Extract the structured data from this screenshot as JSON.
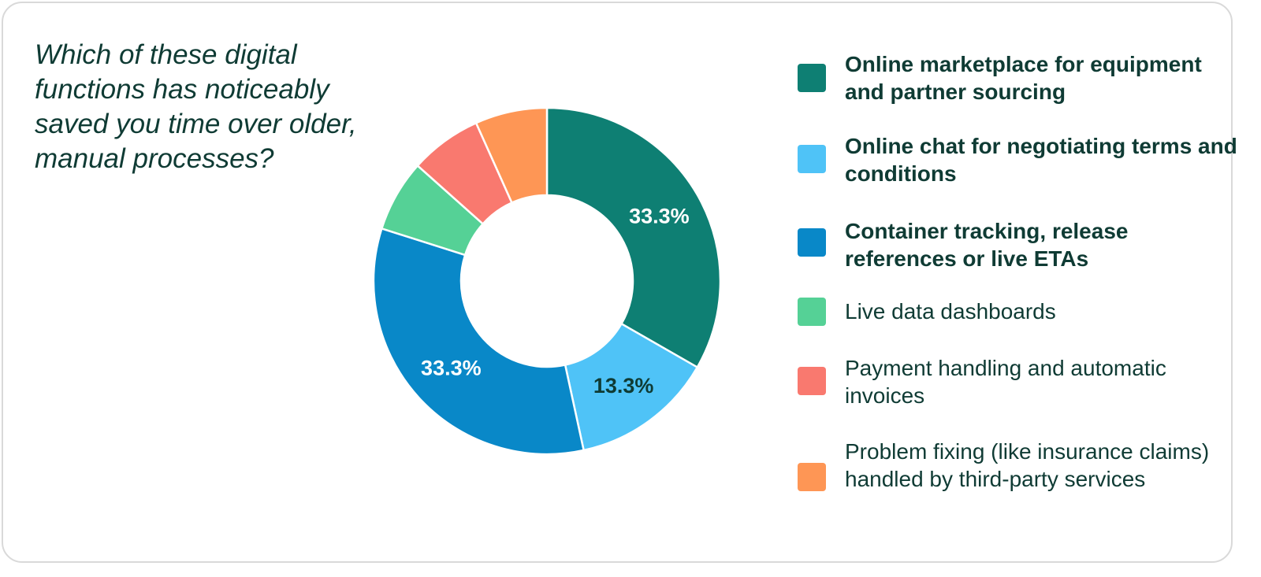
{
  "question": "Which of these digital functions has noticeably saved you time over older, manual processes?",
  "chart_data": {
    "type": "pie",
    "donut": true,
    "slices": [
      {
        "label": "Online marketplace for equipment and partner sourcing",
        "value": 33.3,
        "display": "33.3%",
        "color": "#0e7f73",
        "label_color": "#ffffff",
        "bold": true
      },
      {
        "label": "Online chat for negotiating terms and conditions",
        "value": 13.3,
        "display": "13.3%",
        "color": "#4fc3f7",
        "label_color": "#0f3b34",
        "bold": true
      },
      {
        "label": "Container tracking, release references or live ETAs",
        "value": 33.3,
        "display": "33.3%",
        "color": "#0988c8",
        "label_color": "#ffffff",
        "bold": true
      },
      {
        "label": "Live data dashboards",
        "value": 6.7,
        "display": "",
        "color": "#55d196",
        "label_color": "#ffffff",
        "bold": false
      },
      {
        "label": "Payment handling and automatic invoices",
        "value": 6.7,
        "display": "",
        "color": "#f9796f",
        "label_color": "#ffffff",
        "bold": false
      },
      {
        "label": "Problem fixing (like insurance claims) handled by third-party services",
        "value": 6.7,
        "display": "",
        "color": "#fe9655",
        "label_color": "#ffffff",
        "bold": false
      }
    ],
    "legend_position": "right"
  }
}
